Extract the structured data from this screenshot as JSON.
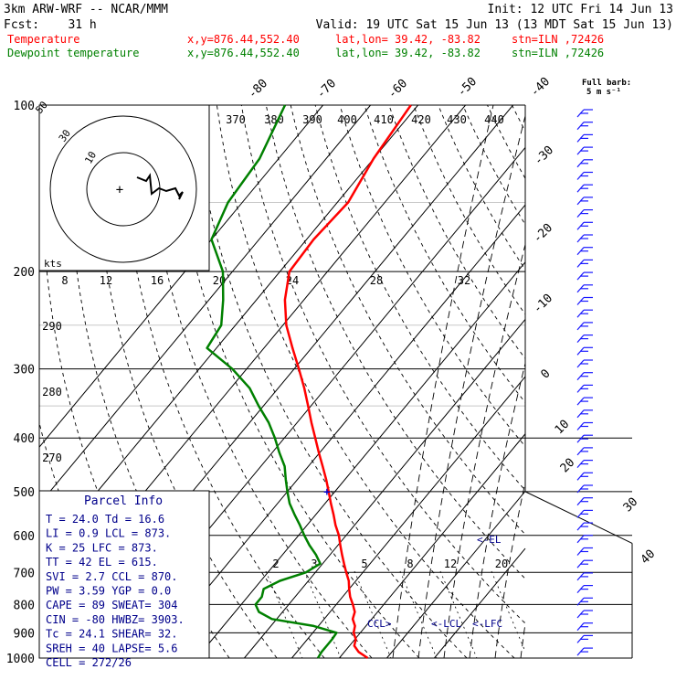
{
  "header": {
    "model": "3km ARW-WRF -- NCAR/MMM",
    "init": "Init: 12 UTC Fri 14 Jun 13",
    "fcst": "Fcst:    31 h",
    "valid": "Valid: 19 UTC Sat 15 Jun 13 (13 MDT Sat 15 Jun 13)",
    "temp_name": "Temperature",
    "dew_name": "Dewpoint temperature",
    "xy": "x,y=876.44,552.40",
    "latlon": "lat,lon= 39.42, -83.82",
    "stn": "stn=ILN ,72426",
    "full_barb_1": "Full barb:",
    "full_barb_2": "5 m s⁻¹"
  },
  "colors": {
    "temperature": "#ff0000",
    "dewpoint": "#008000",
    "index_text": "#00008b",
    "axes": "#000000"
  },
  "chart_data": {
    "type": "line",
    "subtype": "skew-T log-P",
    "p_ticks": [
      100,
      200,
      300,
      400,
      500,
      600,
      700,
      800,
      900,
      1000
    ],
    "skewed_isotherms_C": [
      -80,
      -70,
      -60,
      -50,
      -40,
      -30,
      -20,
      -10,
      0,
      10,
      20,
      30,
      40
    ],
    "theta_labels": [
      "370",
      "380",
      "390",
      "400",
      "410",
      "420",
      "430",
      "440"
    ],
    "theta_side_labels": [
      "290",
      "280",
      "270"
    ],
    "mixing_ratio_labels": [
      "2",
      "3",
      "5",
      "8",
      "12",
      "20"
    ],
    "hodograph": {
      "rings": [
        "10",
        "30",
        "50"
      ],
      "units": "kts",
      "speed_labels": [
        "8",
        "12",
        "16",
        "20",
        "24",
        "28",
        "32"
      ]
    },
    "series": [
      {
        "name": "Temperature",
        "points": [
          [
            1000,
            26
          ],
          [
            975,
            23
          ],
          [
            950,
            21
          ],
          [
            925,
            20.2
          ],
          [
            900,
            18.6
          ],
          [
            875,
            17.7
          ],
          [
            850,
            16
          ],
          [
            825,
            15.2
          ],
          [
            800,
            13.5
          ],
          [
            775,
            11.6
          ],
          [
            750,
            10
          ],
          [
            725,
            8.5
          ],
          [
            700,
            6.5
          ],
          [
            675,
            4.5
          ],
          [
            650,
            2.5
          ],
          [
            625,
            0.5
          ],
          [
            600,
            -1.5
          ],
          [
            575,
            -4
          ],
          [
            550,
            -6.3
          ],
          [
            525,
            -8.8
          ],
          [
            500,
            -11.3
          ],
          [
            475,
            -14
          ],
          [
            450,
            -17
          ],
          [
            425,
            -20.2
          ],
          [
            400,
            -23.5
          ],
          [
            375,
            -27
          ],
          [
            350,
            -30.6
          ],
          [
            325,
            -34.5
          ],
          [
            300,
            -39
          ],
          [
            275,
            -44
          ],
          [
            250,
            -49.3
          ],
          [
            225,
            -54
          ],
          [
            200,
            -58
          ],
          [
            175,
            -58.5
          ],
          [
            150,
            -57.7
          ],
          [
            125,
            -60
          ],
          [
            100,
            -61.5
          ]
        ]
      },
      {
        "name": "Dewpoint temperature",
        "points": [
          [
            1000,
            15.5
          ],
          [
            975,
            15.2
          ],
          [
            950,
            15.2
          ],
          [
            925,
            15.2
          ],
          [
            900,
            15
          ],
          [
            875,
            9
          ],
          [
            850,
            -1
          ],
          [
            825,
            -5
          ],
          [
            800,
            -7
          ],
          [
            775,
            -7
          ],
          [
            750,
            -8
          ],
          [
            725,
            -6
          ],
          [
            700,
            -2
          ],
          [
            675,
            -0.5
          ],
          [
            650,
            -3
          ],
          [
            625,
            -6
          ],
          [
            600,
            -8.8
          ],
          [
            575,
            -11.5
          ],
          [
            550,
            -14.5
          ],
          [
            525,
            -17.5
          ],
          [
            500,
            -20
          ],
          [
            475,
            -22.5
          ],
          [
            450,
            -25
          ],
          [
            425,
            -28.5
          ],
          [
            400,
            -32
          ],
          [
            375,
            -36
          ],
          [
            350,
            -41
          ],
          [
            325,
            -46
          ],
          [
            300,
            -53
          ],
          [
            275,
            -62
          ],
          [
            250,
            -63
          ],
          [
            225,
            -67
          ],
          [
            200,
            -72
          ],
          [
            175,
            -80
          ],
          [
            150,
            -83
          ],
          [
            125,
            -84
          ],
          [
            100,
            -88
          ]
        ]
      }
    ],
    "cross_markers": [
      {
        "p": 500
      }
    ],
    "level_markers": [
      "CCL>",
      "<-LCL",
      "<-LFC",
      "<-EL"
    ],
    "wind_barbs_full": 2
  },
  "indices": {
    "title": "Parcel Info",
    "rows": [
      "T  =   24.0  Td =  16.6",
      "LI =    0.9  LCL =  873.",
      "K  =     25  LFC =  873.",
      "TT =     42  EL  =  615.",
      "SVI =   2.7  CCL =  870.",
      "PW =   3.59  YGP =   0.0",
      "CAPE =   89  SWEAT=  304",
      "CIN =   -80  HWBZ= 3903.",
      "Tc =   24.1  SHEAR=  32.",
      "SREH =   40  LAPSE=  5.6",
      "CELL = 272/26"
    ]
  }
}
